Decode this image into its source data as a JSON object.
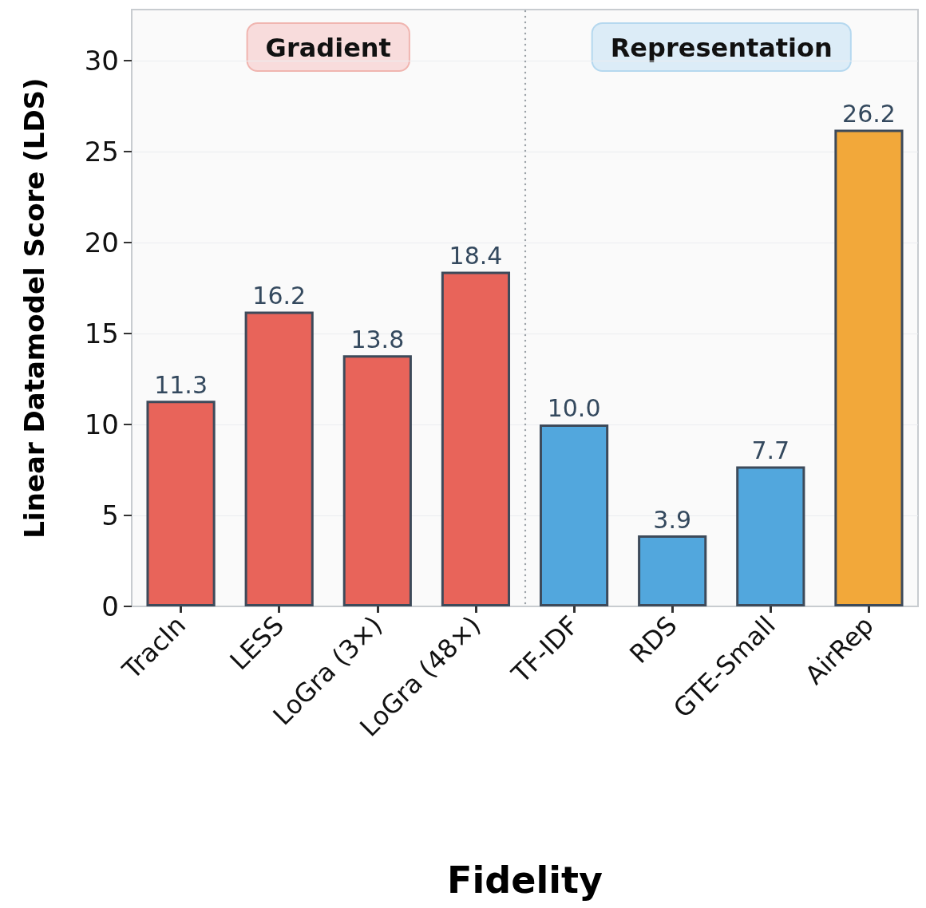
{
  "chart_data": {
    "type": "bar",
    "xlabel": "Fidelity",
    "ylabel": "Linear Datamodel Score (LDS)",
    "categories": [
      "TracIn",
      "LESS",
      "LoGra (3×)",
      "LoGra (48×)",
      "TF-IDF",
      "RDS",
      "GTE-Small",
      "AirRep"
    ],
    "values": [
      11.3,
      16.2,
      13.8,
      18.4,
      10.0,
      3.9,
      7.7,
      26.2
    ],
    "colors": [
      "#e8645a",
      "#e8645a",
      "#e8645a",
      "#e8645a",
      "#52a7dd",
      "#52a7dd",
      "#52a7dd",
      "#f2a83a"
    ],
    "value_labels": [
      "11.3",
      "16.2",
      "13.8",
      "18.4",
      "10.0",
      "3.9",
      "7.7",
      "26.2"
    ],
    "ylim": [
      0,
      32.8
    ],
    "yticks": [
      0,
      5,
      10,
      15,
      20,
      25,
      30
    ],
    "grid": "y",
    "annotations": [
      "Gradient",
      "Representation"
    ]
  }
}
